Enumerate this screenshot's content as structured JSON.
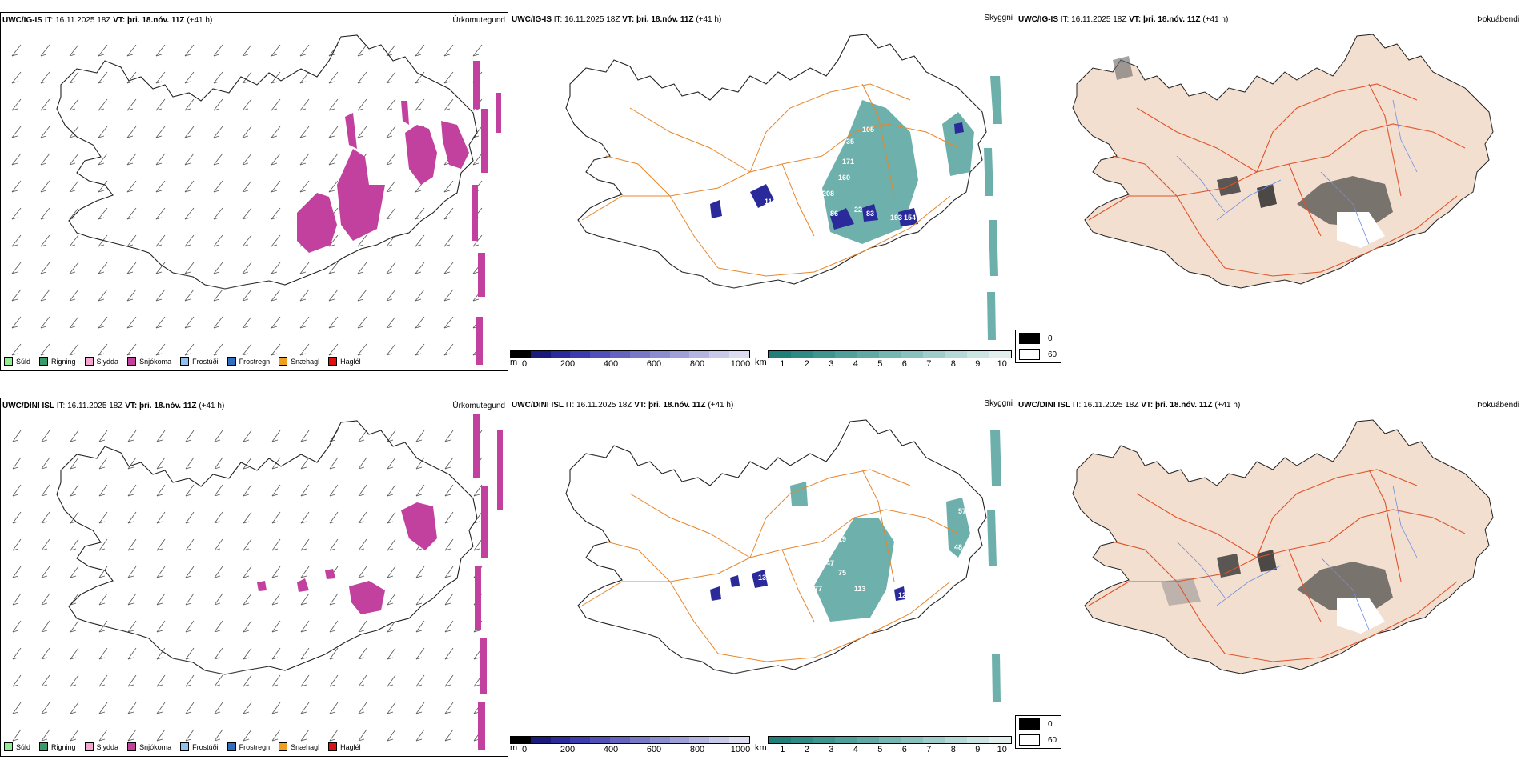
{
  "rows": [
    {
      "model": "UWC/IG-IS",
      "it_label": "IT:",
      "it_value": "16.11.2025 18Z",
      "vt_label": "VT:",
      "vt_value": "þri. 18.nóv. 11Z",
      "lead": "(+41 h)",
      "titles": [
        "Úrkomutegund",
        "Skyggni",
        "Þokuábendi"
      ]
    },
    {
      "model": "UWC/DINI ISL",
      "it_label": "IT:",
      "it_value": "16.11.2025 18Z",
      "vt_label": "VT:",
      "vt_value": "þri. 18.nóv. 11Z",
      "lead": "(+41 h)",
      "titles": [
        "Úrkomutegund",
        "Skyggni",
        "Þokuábendi"
      ]
    }
  ],
  "precip_legend": [
    {
      "label": "Súld",
      "color": "#90ee90"
    },
    {
      "label": "Rigning",
      "color": "#3a9a6a"
    },
    {
      "label": "Slydda",
      "color": "#f4a6d0"
    },
    {
      "label": "Snjókoma",
      "color": "#c2419f"
    },
    {
      "label": "Frostúði",
      "color": "#8fc0ef"
    },
    {
      "label": "Frostregn",
      "color": "#2f6fbf"
    },
    {
      "label": "Snæhagl",
      "color": "#f0a020"
    },
    {
      "label": "Haglél",
      "color": "#e01010"
    }
  ],
  "elevation_bar": {
    "unit": "m",
    "ticks": [
      "0",
      "200",
      "400",
      "600",
      "800",
      "1000"
    ],
    "colors": [
      "#000000",
      "#1a1a7a",
      "#2a2a9a",
      "#3c3cae",
      "#5050b8",
      "#6464c0",
      "#7878c8",
      "#8c8cd0",
      "#a0a0d8",
      "#b4b4e0",
      "#c8c8e8",
      "#dcdcf0"
    ]
  },
  "visibility_bar": {
    "unit": "km",
    "ticks": [
      "1",
      "2",
      "3",
      "4",
      "5",
      "6",
      "7",
      "8",
      "9",
      "10"
    ],
    "colors": [
      "#1f7f7a",
      "#2e8a85",
      "#3d958f",
      "#4ea09a",
      "#60aaa5",
      "#74b6b1",
      "#88c1bd",
      "#9ecdca",
      "#b4d9d6",
      "#cae4e2",
      "#e0efee"
    ]
  },
  "fog_legend": [
    {
      "label": "0",
      "color": "#000000"
    },
    {
      "label": "60",
      "color": "#ffffff"
    }
  ],
  "map_labels": {
    "row0": [
      "105",
      "35",
      "171",
      "160",
      "208",
      "22",
      "30",
      "86",
      "83",
      "193",
      "154",
      "114",
      "50"
    ],
    "row1": [
      "57",
      "48",
      "219",
      "47",
      "300",
      "177",
      "113",
      "120",
      "132",
      "57",
      "66",
      "75"
    ]
  },
  "colors": {
    "snow": "#c2419f",
    "teal": "#3d958f",
    "navy": "#2a2a9a",
    "road": "#e8862a",
    "fog_land": "#f3dfd0",
    "fog_road": "#e0522a",
    "river": "#6f8de0"
  }
}
